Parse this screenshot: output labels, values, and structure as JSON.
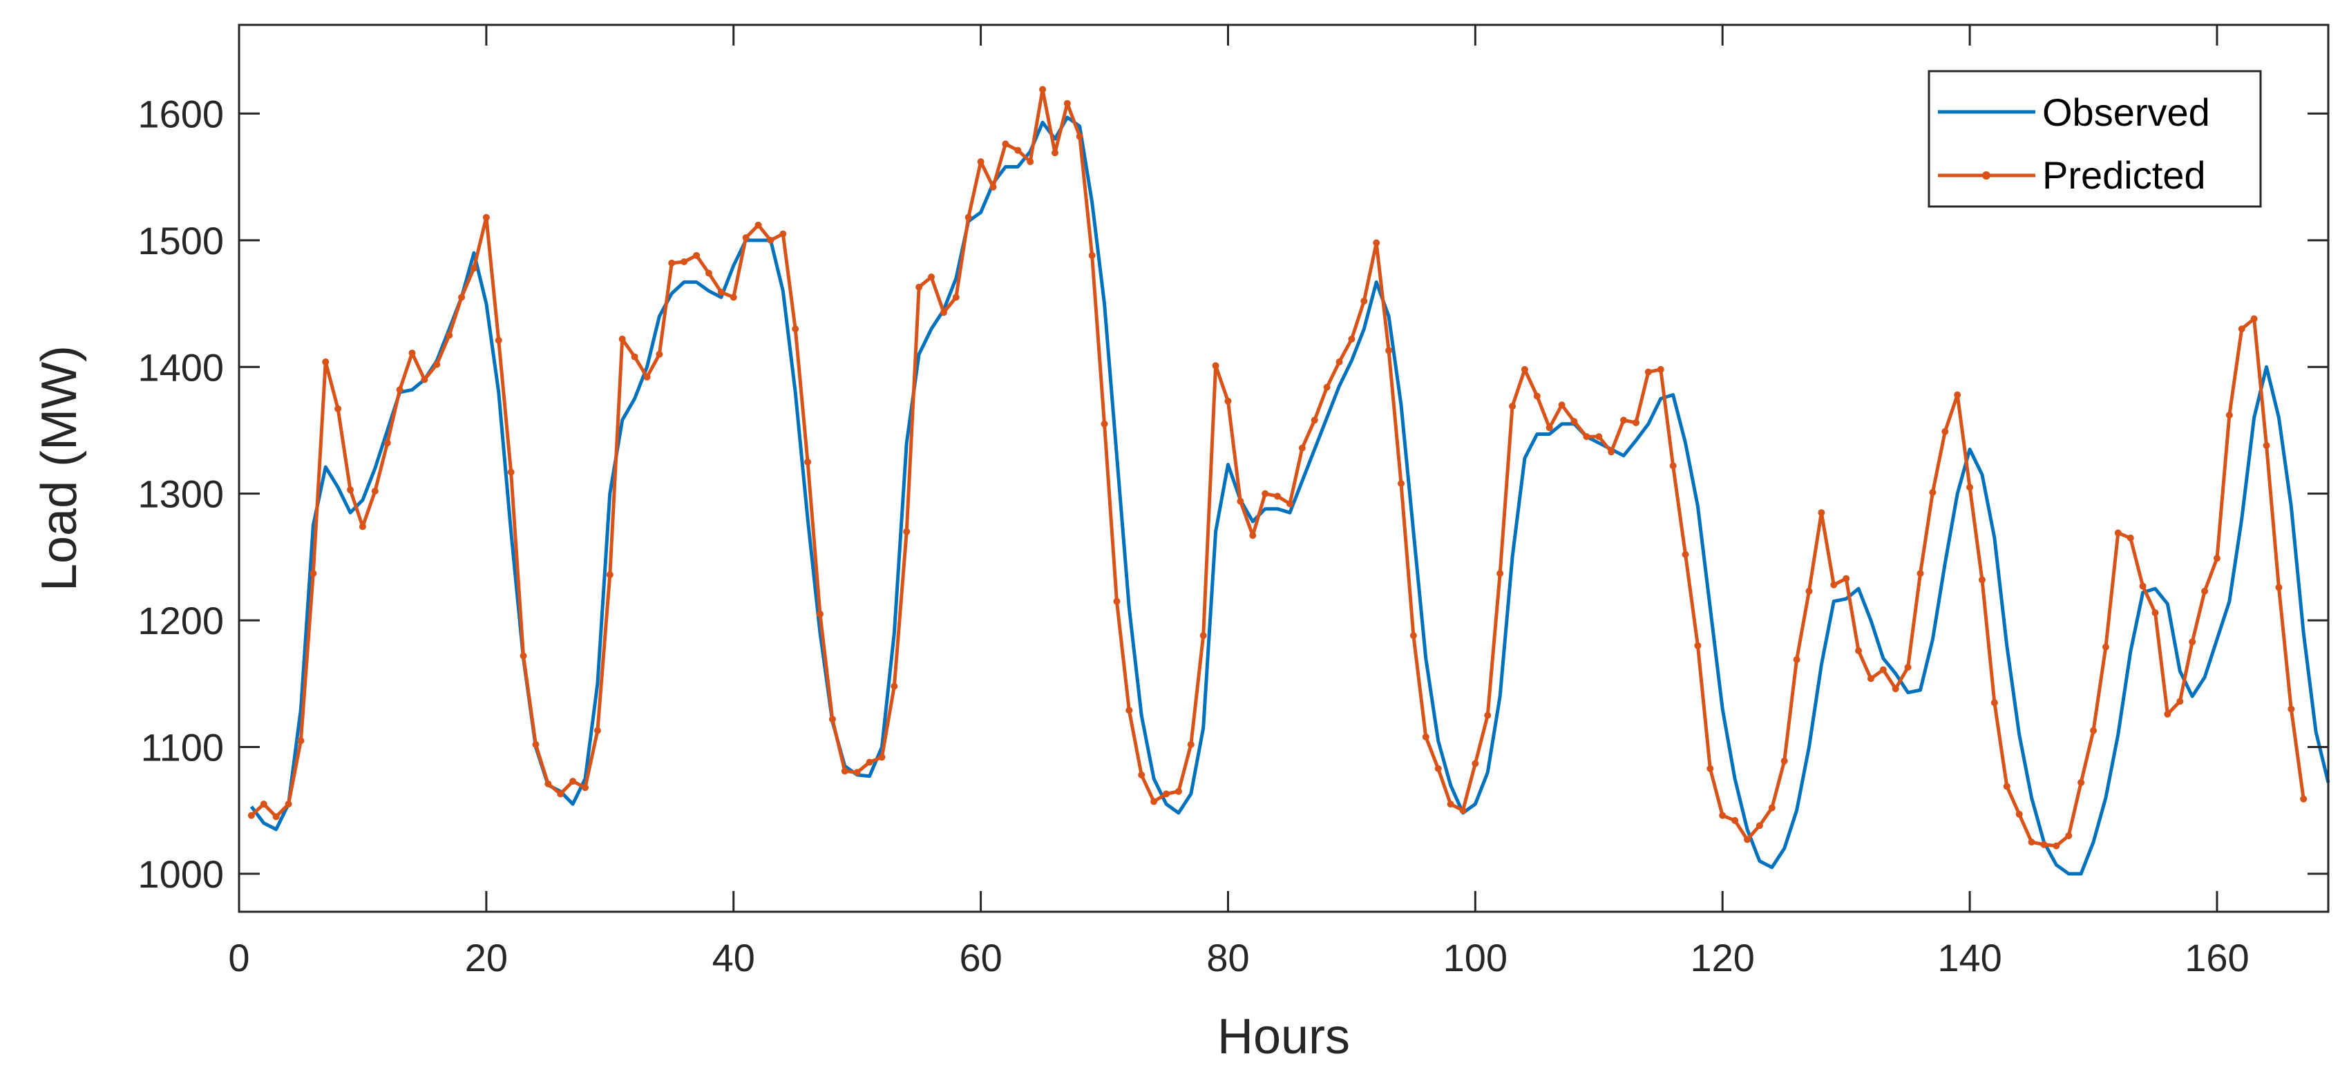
{
  "chart_data": {
    "type": "line",
    "title": "",
    "xlabel": "Hours",
    "ylabel": "Load (MW)",
    "xlim": [
      0,
      169
    ],
    "ylim": [
      970,
      1670
    ],
    "xticks": [
      0,
      20,
      40,
      60,
      80,
      100,
      120,
      140,
      160
    ],
    "yticks": [
      1000,
      1100,
      1200,
      1300,
      1400,
      1500,
      1600
    ],
    "grid": false,
    "legend": {
      "position": "top-right"
    },
    "colors": {
      "observed": "#0072BD",
      "predicted": "#D95319"
    },
    "series": [
      {
        "name": "Observed",
        "marker": "none",
        "values": [
          1053,
          1040,
          1035,
          1055,
          1130,
          1275,
          1321,
          1305,
          1285,
          1295,
          1320,
          1350,
          1380,
          1382,
          1390,
          1405,
          1430,
          1455,
          1490,
          1450,
          1380,
          1270,
          1170,
          1100,
          1070,
          1065,
          1055,
          1075,
          1150,
          1300,
          1358,
          1375,
          1400,
          1440,
          1458,
          1467,
          1467,
          1460,
          1455,
          1480,
          1500,
          1500,
          1500,
          1460,
          1380,
          1280,
          1190,
          1120,
          1085,
          1078,
          1077,
          1100,
          1190,
          1340,
          1410,
          1430,
          1445,
          1470,
          1515,
          1522,
          1545,
          1558,
          1558,
          1570,
          1593,
          1580,
          1597,
          1590,
          1530,
          1450,
          1330,
          1210,
          1125,
          1075,
          1055,
          1048,
          1063,
          1115,
          1270,
          1323,
          1295,
          1278,
          1288,
          1288,
          1285,
          1310,
          1335,
          1360,
          1385,
          1405,
          1430,
          1467,
          1440,
          1370,
          1270,
          1170,
          1105,
          1070,
          1048,
          1055,
          1080,
          1140,
          1250,
          1328,
          1347,
          1347,
          1355,
          1355,
          1345,
          1340,
          1335,
          1330,
          1342,
          1355,
          1375,
          1378,
          1340,
          1290,
          1210,
          1130,
          1075,
          1035,
          1010,
          1005,
          1020,
          1050,
          1100,
          1165,
          1215,
          1217,
          1225,
          1200,
          1170,
          1158,
          1143,
          1145,
          1185,
          1245,
          1300,
          1335,
          1315,
          1265,
          1180,
          1110,
          1060,
          1025,
          1007,
          1000,
          1000,
          1025,
          1060,
          1110,
          1175,
          1222,
          1225,
          1213,
          1160,
          1140,
          1155,
          1185,
          1215,
          1280,
          1360,
          1400,
          1360,
          1290,
          1190,
          1112,
          1072
        ]
      },
      {
        "name": "Predicted",
        "marker": "dot",
        "values": [
          1046,
          1055,
          1045,
          1055,
          1105,
          1237,
          1404,
          1367,
          1303,
          1274,
          1302,
          1340,
          1382,
          1411,
          1390,
          1402,
          1425,
          1455,
          1478,
          1518,
          1421,
          1317,
          1172,
          1102,
          1071,
          1063,
          1073,
          1068,
          1113,
          1236,
          1422,
          1408,
          1392,
          1410,
          1482,
          1483,
          1488,
          1474,
          1459,
          1455,
          1502,
          1512,
          1500,
          1505,
          1430,
          1325,
          1205,
          1122,
          1081,
          1080,
          1088,
          1092,
          1148,
          1270,
          1463,
          1471,
          1443,
          1455,
          1518,
          1562,
          1542,
          1576,
          1571,
          1562,
          1619,
          1569,
          1608,
          1582,
          1488,
          1355,
          1215,
          1129,
          1078,
          1057,
          1063,
          1065,
          1102,
          1188,
          1401,
          1373,
          1294,
          1267,
          1300,
          1298,
          1292,
          1336,
          1358,
          1384,
          1404,
          1422,
          1452,
          1498,
          1413,
          1308,
          1188,
          1108,
          1083,
          1055,
          1050,
          1087,
          1125,
          1237,
          1369,
          1398,
          1377,
          1352,
          1370,
          1357,
          1345,
          1345,
          1333,
          1358,
          1356,
          1396,
          1398,
          1322,
          1252,
          1180,
          1083,
          1046,
          1042,
          1027,
          1038,
          1052,
          1089,
          1169,
          1223,
          1285,
          1228,
          1233,
          1176,
          1154,
          1161,
          1146,
          1163,
          1237,
          1301,
          1349,
          1378,
          1305,
          1232,
          1135,
          1069,
          1047,
          1025,
          1023,
          1022,
          1030,
          1072,
          1113,
          1179,
          1269,
          1265,
          1227,
          1206,
          1126,
          1136,
          1183,
          1223,
          1249,
          1362,
          1430,
          1438,
          1338,
          1226,
          1130,
          1059
        ]
      }
    ]
  }
}
